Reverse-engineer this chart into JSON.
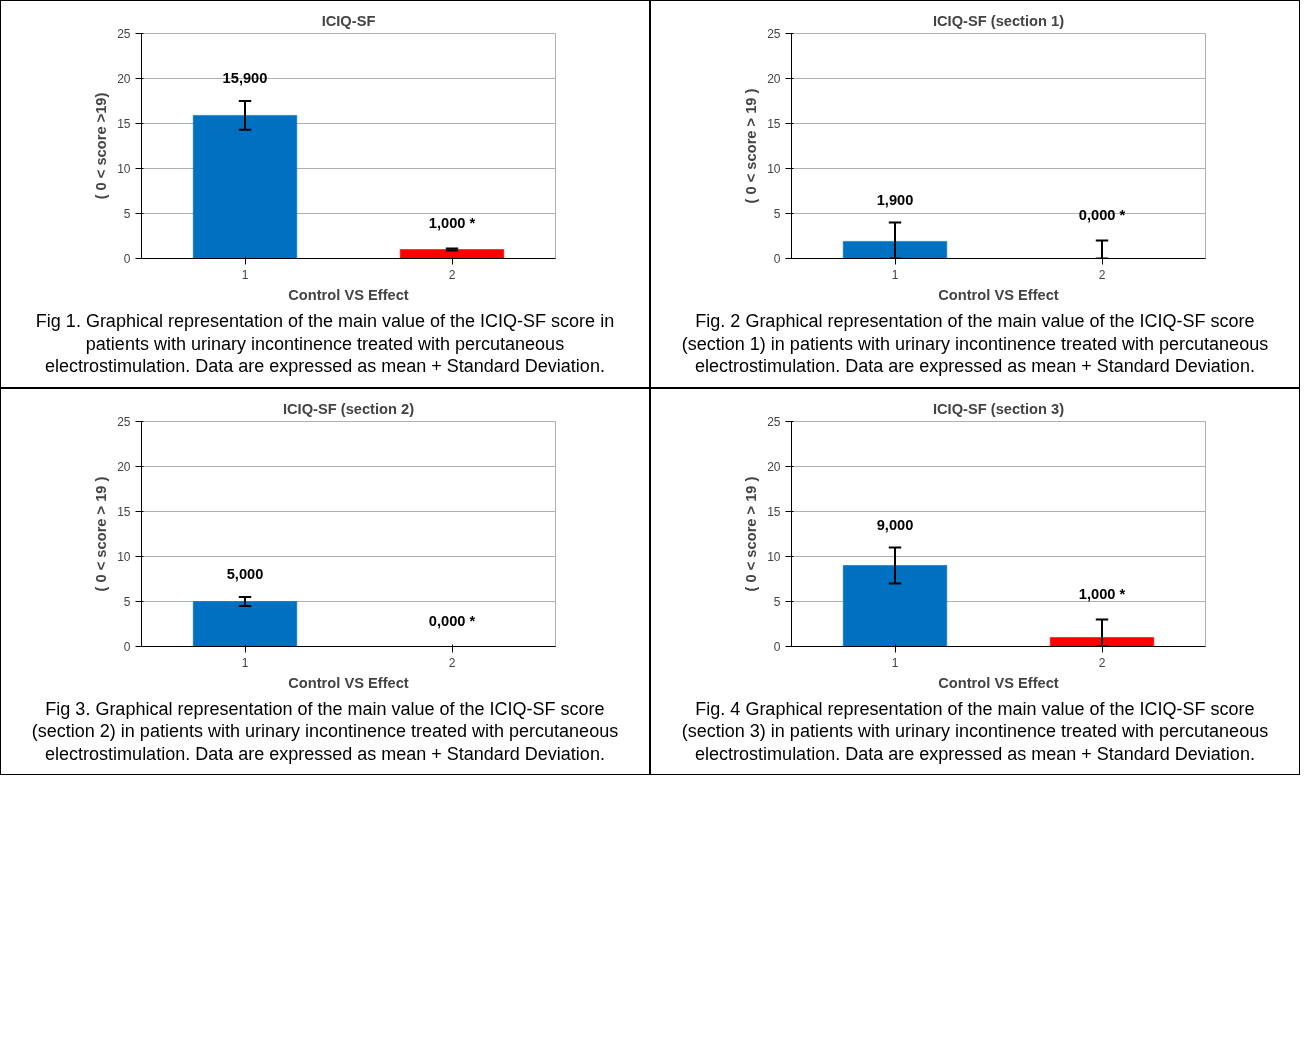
{
  "chart_data": [
    {
      "type": "bar",
      "title": "ICIQ-SF",
      "categories": [
        "1",
        "2"
      ],
      "values": [
        15.9,
        1.0
      ],
      "colors": [
        "#0070c0",
        "#ff0000"
      ],
      "errors": [
        [
          14.3,
          17.5
        ],
        [
          0.9,
          1.1
        ]
      ],
      "value_labels": [
        "15,900",
        "1,000 *"
      ],
      "xlabel": "Control VS Effect",
      "ylabel": "( 0 < score >19)",
      "ylim": [
        0,
        25
      ],
      "yticks": [
        0,
        5,
        10,
        15,
        20,
        25
      ],
      "grid": "y",
      "annotations": [
        "Fig 1. Graphical representation of the main value of the ICIQ-SF score in patients with urinary incontinence treated with percutaneous electrostimulation. Data are expressed as mean + Standard Deviation."
      ]
    },
    {
      "type": "bar",
      "title": "ICIQ-SF (section 1)",
      "categories": [
        "1",
        "2"
      ],
      "values": [
        1.9,
        0.0
      ],
      "colors": [
        "#0070c0",
        "#ff0000"
      ],
      "errors": [
        [
          0,
          4
        ],
        [
          0,
          2
        ]
      ],
      "value_labels": [
        "1,900",
        "0,000 *"
      ],
      "xlabel": "Control VS Effect",
      "ylabel": "( 0 < score > 19 )",
      "ylim": [
        0,
        25
      ],
      "yticks": [
        0,
        5,
        10,
        15,
        20,
        25
      ],
      "grid": "y",
      "annotations": [
        "Fig. 2 Graphical representation of the main value of the ICIQ-SF score  (section 1) in patients with urinary incontinence treated with percutaneous electrostimulation. Data are expressed as mean + Standard Deviation."
      ]
    },
    {
      "type": "bar",
      "title": "ICIQ-SF (section 2)",
      "categories": [
        "1",
        "2"
      ],
      "values": [
        5.0,
        0.0
      ],
      "colors": [
        "#0070c0",
        "#ff0000"
      ],
      "errors": [
        [
          4.5,
          5.5
        ],
        null
      ],
      "value_labels": [
        "5,000",
        "0,000 *"
      ],
      "xlabel": "Control VS Effect",
      "ylabel": "( 0 < score > 19 )",
      "ylim": [
        0,
        25
      ],
      "yticks": [
        0,
        5,
        10,
        15,
        20,
        25
      ],
      "grid": "y",
      "annotations": [
        "Fig 3. Graphical representation of the main value of the ICIQ-SF score (section 2) in patients with urinary incontinence treated with percutaneous electrostimulation. Data are expressed as mean + Standard Deviation."
      ]
    },
    {
      "type": "bar",
      "title": "ICIQ-SF (section 3)",
      "categories": [
        "1",
        "2"
      ],
      "values": [
        9.0,
        1.0
      ],
      "colors": [
        "#0070c0",
        "#ff0000"
      ],
      "errors": [
        [
          7,
          11
        ],
        [
          0,
          3
        ]
      ],
      "value_labels": [
        "9,000",
        "1,000 *"
      ],
      "xlabel": "Control VS Effect",
      "ylabel": "( 0 < score > 19 )",
      "ylim": [
        0,
        25
      ],
      "yticks": [
        0,
        5,
        10,
        15,
        20,
        25
      ],
      "grid": "y",
      "annotations": [
        "Fig. 4 Graphical representation of the main value of the ICIQ-SF score (section 3) in patients with urinary incontinence treated with percutaneous electrostimulation. Data are expressed as mean + Standard Deviation."
      ]
    }
  ]
}
